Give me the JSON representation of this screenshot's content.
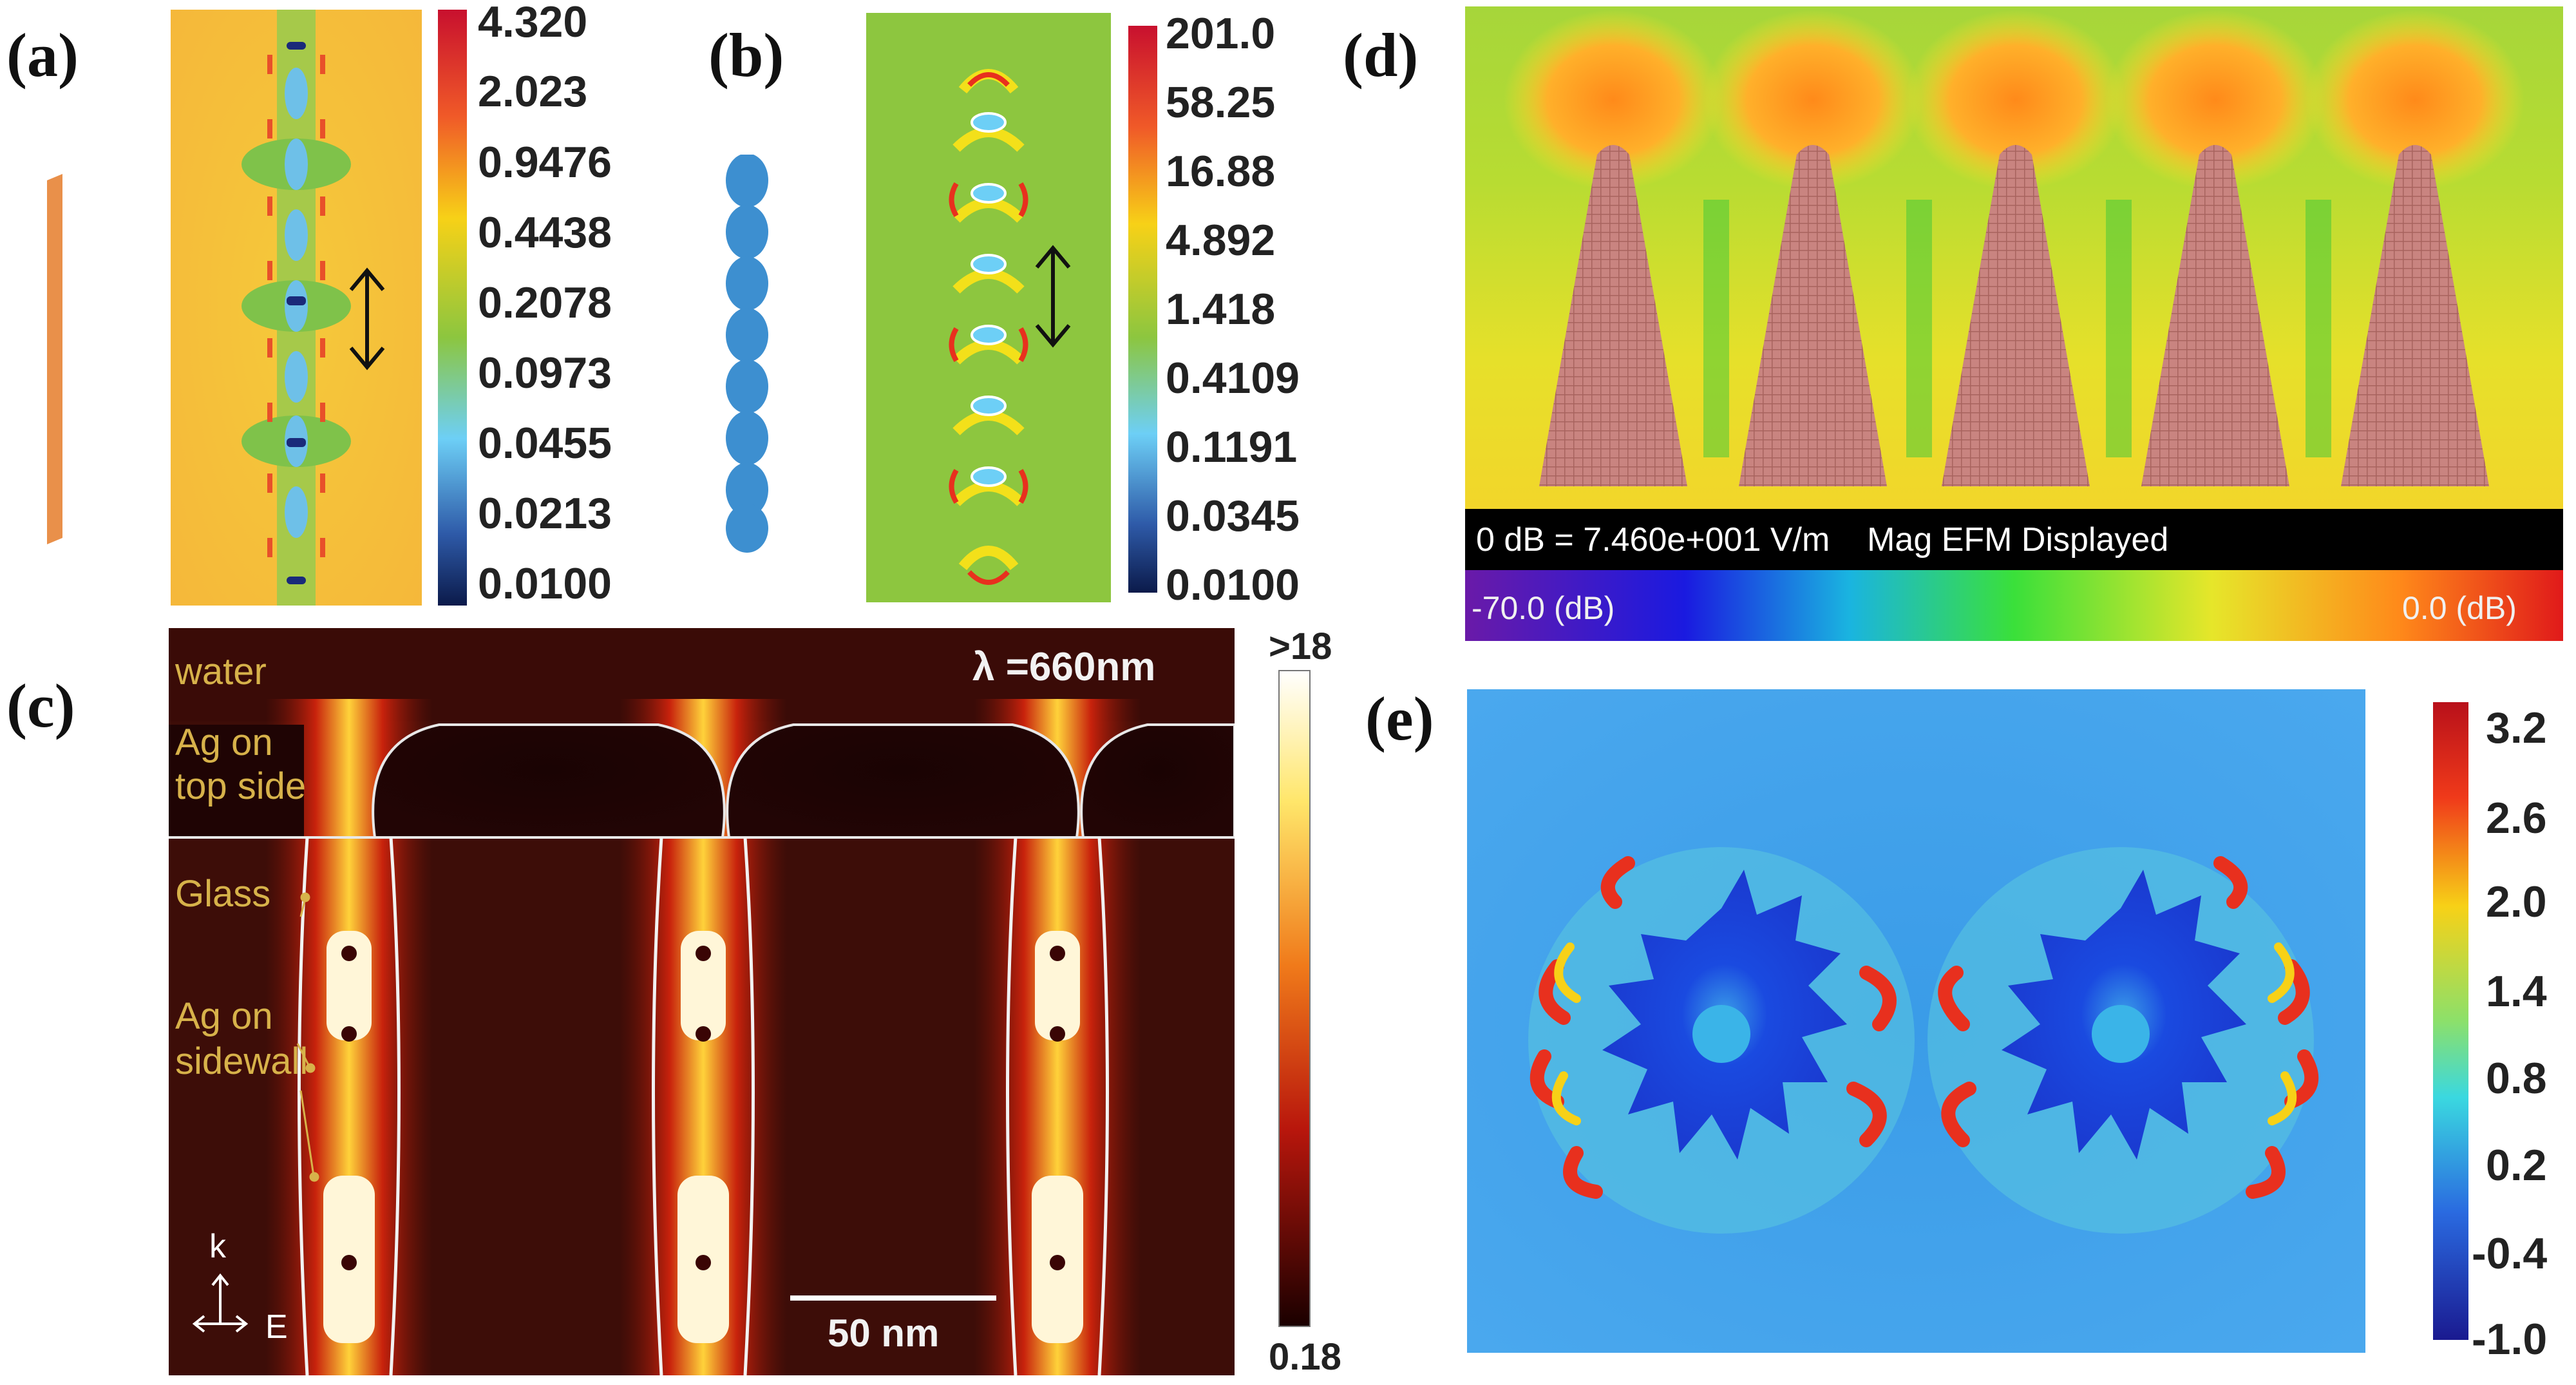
{
  "panels": {
    "a": {
      "label": "(a)",
      "colorbar": [
        "4.320",
        "2.023",
        "0.9476",
        "0.4438",
        "0.2078",
        "0.0973",
        "0.0455",
        "0.0213",
        "0.0100"
      ]
    },
    "b": {
      "label": "(b)",
      "colorbar": [
        "201.0",
        "58.25",
        "16.88",
        "4.892",
        "1.418",
        "0.4109",
        "0.1191",
        "0.0345",
        "0.0100"
      ]
    },
    "c": {
      "label": "(c)",
      "wavelength": "λ =660nm",
      "colorbar_top": ">18",
      "colorbar_bottom": "0.18",
      "annotations": {
        "water": "water",
        "ag_top_1": "Ag on",
        "ag_top_2": "top side",
        "glass": "Glass",
        "ag_side_1": "Ag on",
        "ag_side_2": "sidewall"
      },
      "scalebar": "50 nm",
      "axis_k": "k",
      "axis_e": "E"
    },
    "d": {
      "label": "(d)",
      "info": "0 dB = 7.460e+001 V/m    Mag EFM Displayed",
      "scale_min": "-70.0 (dB)",
      "scale_max": "0.0 (dB)"
    },
    "e": {
      "label": "(e)",
      "colorbar": [
        "3.2",
        "2.6",
        "2.0",
        "1.4",
        "0.8",
        "0.2",
        "-0.4",
        "-1.0"
      ]
    }
  }
}
